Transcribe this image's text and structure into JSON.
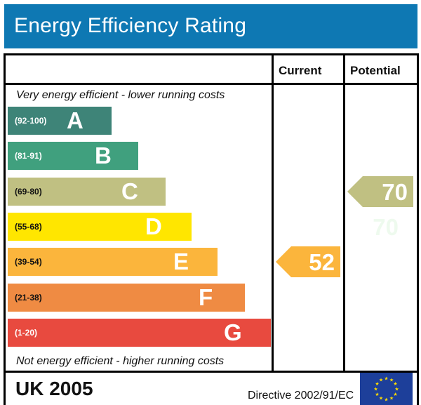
{
  "title": "Energy Efficiency Rating",
  "columns": {
    "current": "Current",
    "potential": "Potential"
  },
  "captions": {
    "top": "Very energy efficient - lower running costs",
    "bottom": "Not energy efficient - higher running costs"
  },
  "colors": {
    "title_bar": "#0e78b3",
    "eu_flag": "#1d3f9a",
    "eu_star": "#ffdd00"
  },
  "footer": {
    "country": "UK 2005",
    "directive": "Directive 2002/91/EC",
    "flag_icon": "eu-flag-icon"
  },
  "chart_data": {
    "type": "bar",
    "title": "Energy Efficiency Rating",
    "bands": [
      {
        "letter": "A",
        "range": "(92-100)",
        "min": 92,
        "max": 100,
        "color": "#3e8478"
      },
      {
        "letter": "B",
        "range": "(81-91)",
        "min": 81,
        "max": 91,
        "color": "#40a07e"
      },
      {
        "letter": "C",
        "range": "(69-80)",
        "min": 69,
        "max": 80,
        "color": "#c0c082"
      },
      {
        "letter": "D",
        "range": "(55-68)",
        "min": 55,
        "max": 68,
        "color": "#ffe600"
      },
      {
        "letter": "E",
        "range": "(39-54)",
        "min": 39,
        "max": 54,
        "color": "#fbb53c"
      },
      {
        "letter": "F",
        "range": "(21-38)",
        "min": 21,
        "max": 38,
        "color": "#ef8b43"
      },
      {
        "letter": "G",
        "range": "(1-20)",
        "min": 1,
        "max": 20,
        "color": "#e84a3f"
      }
    ],
    "current": {
      "value": 52,
      "band": "E",
      "color": "#fbb53c"
    },
    "potential": {
      "value": 70,
      "band": "C",
      "color": "#c0c082"
    },
    "ghost_label": "70"
  }
}
